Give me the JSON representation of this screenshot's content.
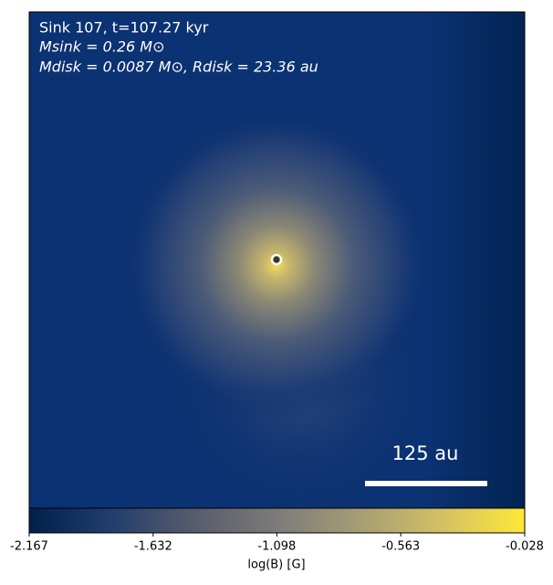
{
  "chart_data": {
    "type": "image",
    "annotations": [
      "Sink 107, t=107.27 kyr",
      "Msink = 0.26 M⊙",
      "Mdisk = 0.0087 M⊙, Rdisk = 23.36 au"
    ],
    "scale_bar_label": "125 au",
    "colorbar_label": "log(B) [G]",
    "colormap": [
      "#00204c",
      "#233e6c",
      "#575c6d",
      "#7c7b78",
      "#a69d75",
      "#d3c164",
      "#fee838"
    ],
    "clim": [
      -2.167,
      -0.028
    ],
    "cticks": [
      -2.167,
      -1.632,
      -1.098,
      -0.563,
      -0.028
    ]
  }
}
